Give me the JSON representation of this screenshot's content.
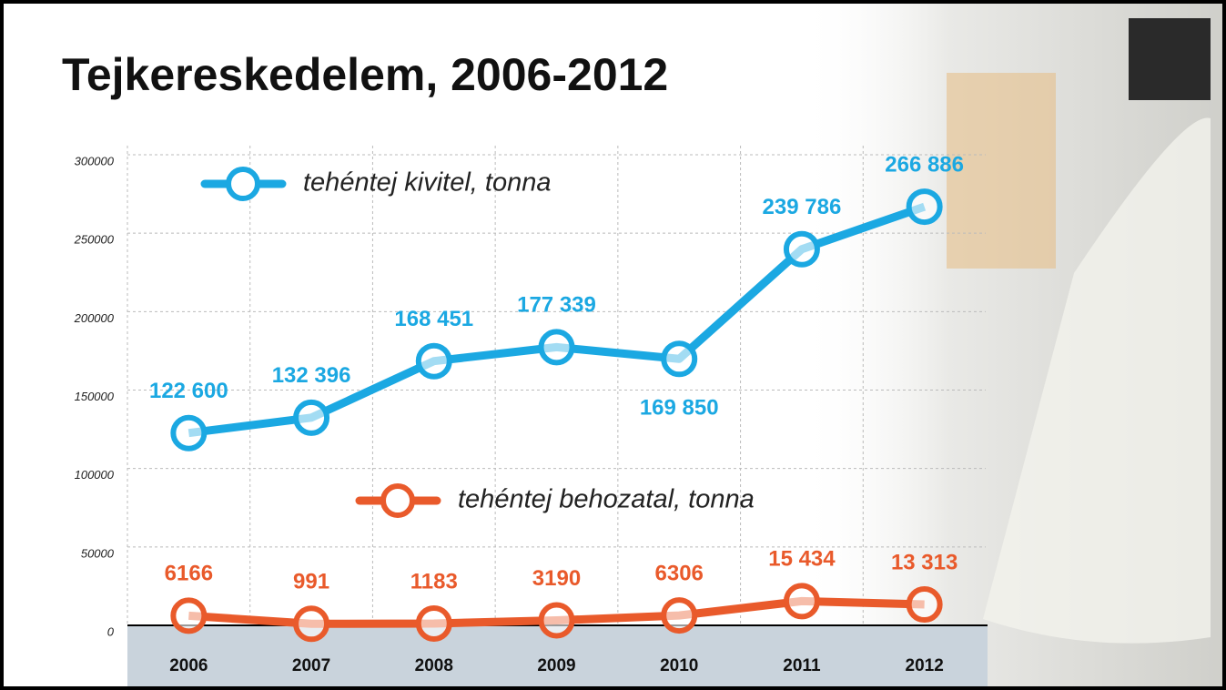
{
  "chart_data": {
    "type": "line",
    "title": "Tejkereskedelem, 2006-2012",
    "categories": [
      "2006",
      "2007",
      "2008",
      "2009",
      "2010",
      "2011",
      "2012"
    ],
    "series": [
      {
        "name": "tehéntej kivitel, tonna",
        "color": "#1ba8e2",
        "values": [
          122600,
          132396,
          168451,
          177339,
          169850,
          239786,
          266886
        ],
        "value_labels": [
          "122 600",
          "132 396",
          "168 451",
          "177 339",
          "169 850",
          "239 786",
          "266 886"
        ]
      },
      {
        "name": "tehéntej behozatal, tonna",
        "color": "#e95a2b",
        "values": [
          6166,
          991,
          1183,
          3190,
          6306,
          15434,
          13313
        ],
        "value_labels": [
          "6166",
          "991",
          "1183",
          "3190",
          "6306",
          "15 434",
          "13 313"
        ]
      }
    ],
    "ylim": [
      0,
      300000
    ],
    "yticks": [
      0,
      50000,
      100000,
      150000,
      200000,
      250000,
      300000
    ],
    "grid": true
  }
}
